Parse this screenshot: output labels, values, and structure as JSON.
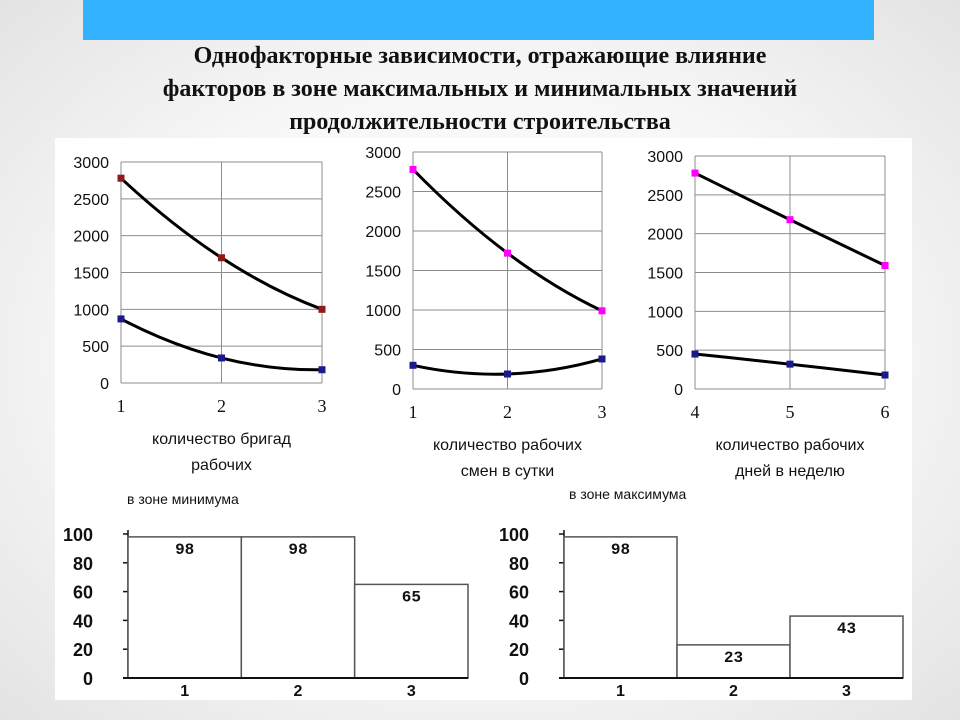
{
  "header": {
    "title_lines": [
      "Однофакторные зависимости, отражающие влияние",
      "факторов в зоне максимальных и минимальных  значений",
      "продолжительности строительства"
    ],
    "bar_color": "#33b3ff"
  },
  "chart_data": [
    {
      "type": "line",
      "xlabel_lines": [
        "количество бригад",
        "рабочих"
      ],
      "x": [
        1,
        2,
        3
      ],
      "ylim": [
        0,
        3000
      ],
      "yticks": [
        0,
        500,
        1000,
        1500,
        2000,
        2500,
        3000
      ],
      "series": [
        {
          "values": [
            2780,
            1700,
            1000
          ],
          "color": "#000000",
          "marker_color": "#8b1a1a"
        },
        {
          "values": [
            870,
            340,
            180
          ],
          "color": "#000000",
          "marker_color": "#1a1a8b"
        }
      ],
      "grid": true
    },
    {
      "type": "line",
      "xlabel_lines": [
        "количество рабочих",
        "смен в сутки"
      ],
      "x": [
        1,
        2,
        3
      ],
      "ylim": [
        0,
        3000
      ],
      "yticks": [
        0,
        500,
        1000,
        1500,
        2000,
        2500,
        3000
      ],
      "series": [
        {
          "values": [
            2780,
            1720,
            990
          ],
          "color": "#000000",
          "marker_color": "#ff00ff"
        },
        {
          "values": [
            300,
            190,
            380
          ],
          "color": "#000000",
          "marker_color": "#1a1a8b"
        }
      ],
      "grid": true
    },
    {
      "type": "line",
      "xlabel_lines": [
        "количество рабочих",
        "дней в неделю"
      ],
      "x": [
        4,
        5,
        6
      ],
      "ylim": [
        0,
        3000
      ],
      "yticks": [
        0,
        500,
        1000,
        1500,
        2000,
        2500,
        3000
      ],
      "series": [
        {
          "values": [
            2780,
            2180,
            1590
          ],
          "color": "#000000",
          "marker_color": "#ff00ff"
        },
        {
          "values": [
            450,
            320,
            180
          ],
          "color": "#000000",
          "marker_color": "#1a1a8b"
        }
      ],
      "grid": true
    },
    {
      "type": "bar",
      "title": "в зоне минимума",
      "categories": [
        "1",
        "2",
        "3"
      ],
      "values": [
        98,
        98,
        65
      ],
      "ylim": [
        0,
        100
      ],
      "yticks": [
        0,
        20,
        40,
        60,
        80,
        100
      ]
    },
    {
      "type": "bar",
      "title": "в зоне максимума",
      "categories": [
        "1",
        "2",
        "3"
      ],
      "values": [
        98,
        23,
        43
      ],
      "ylim": [
        0,
        100
      ],
      "yticks": [
        0,
        20,
        40,
        60,
        80,
        100
      ]
    }
  ]
}
